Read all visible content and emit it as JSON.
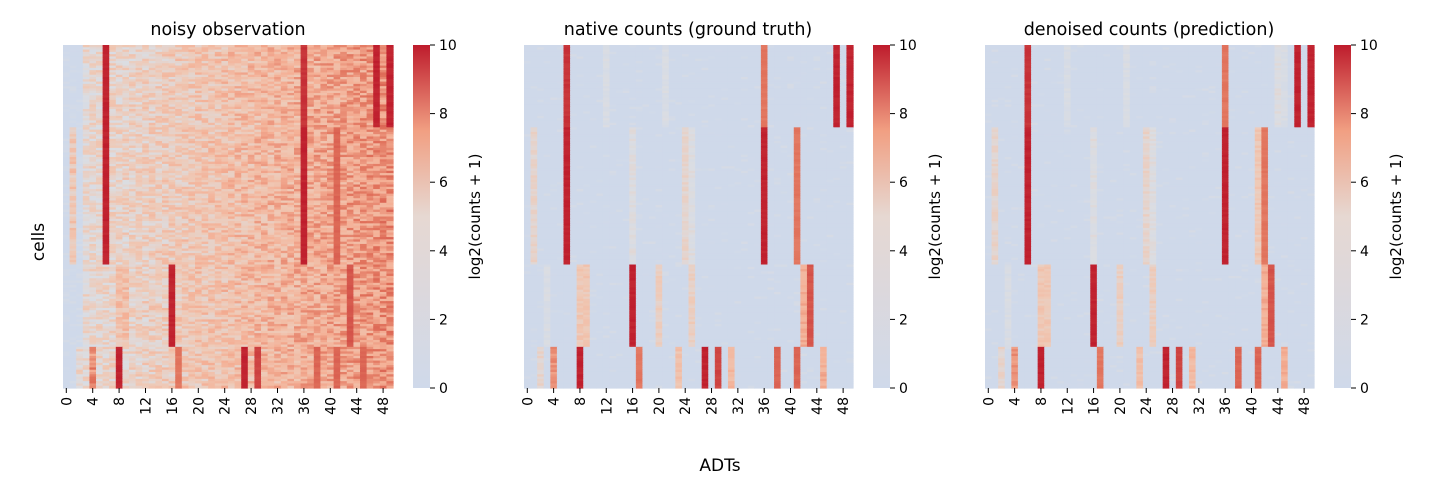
{
  "figure": {
    "ylabel": "cells",
    "xlabel": "ADTs"
  },
  "colormap": {
    "name": "coolwarm",
    "low": "#cfd9ea",
    "mid": "#e6d8d2",
    "high": "#be1c2c"
  },
  "chart_data": [
    {
      "type": "heatmap",
      "title": "noisy observation",
      "xlabel": "",
      "ylabel": "cells",
      "x_tick_labels": [
        "0",
        "4",
        "8",
        "12",
        "16",
        "20",
        "24",
        "28",
        "32",
        "36",
        "40",
        "44",
        "48"
      ],
      "n_columns": 50,
      "colorbar": {
        "label": "log2(counts + 1)",
        "range": [
          0,
          10
        ],
        "ticks": [
          "0",
          "2",
          "4",
          "6",
          "8",
          "10"
        ]
      },
      "background_level": 4.5,
      "column_noise": 1.2,
      "cell_groups": [
        {
          "fraction": 0.24,
          "high_columns": {
            "6": 10,
            "36": 9.5,
            "47": 10,
            "49": 10
          },
          "medium_columns": {}
        },
        {
          "fraction": 0.4,
          "high_columns": {
            "6": 10,
            "36": 10,
            "41": 8
          },
          "medium_columns": {
            "1": 4,
            "24": 4.5
          }
        },
        {
          "fraction": 0.24,
          "high_columns": {
            "16": 10,
            "43": 8.5
          },
          "medium_columns": {
            "8": 4.5,
            "9": 4.5,
            "20": 4.5,
            "25": 4.5
          }
        },
        {
          "fraction": 0.12,
          "high_columns": {
            "8": 10,
            "27": 10,
            "29": 9,
            "17": 7.5,
            "38": 8,
            "41": 8,
            "45": 8
          },
          "medium_columns": {
            "4": 6.5,
            "2": 3,
            "31": 5,
            "35": 5,
            "23": 4
          }
        }
      ]
    },
    {
      "type": "heatmap",
      "title": "native counts (ground truth)",
      "xlabel": "",
      "ylabel": "",
      "x_tick_labels": [
        "0",
        "4",
        "8",
        "12",
        "16",
        "20",
        "24",
        "28",
        "32",
        "36",
        "40",
        "44",
        "48"
      ],
      "n_columns": 50,
      "colorbar": {
        "label": "log2(counts + 1)",
        "range": [
          0,
          10
        ],
        "ticks": [
          "0",
          "2",
          "4",
          "6",
          "8",
          "10"
        ]
      },
      "background_level": 0,
      "column_noise": 0.6,
      "cell_groups": [
        {
          "fraction": 0.24,
          "high_columns": {
            "6": 9.5,
            "36": 7.5,
            "47": 10,
            "49": 10
          },
          "medium_columns": {
            "12": 1.5,
            "21": 1.5
          }
        },
        {
          "fraction": 0.4,
          "high_columns": {
            "6": 10,
            "36": 10,
            "41": 7.5
          },
          "medium_columns": {
            "1": 3,
            "16": 2,
            "24": 3,
            "25": 2
          }
        },
        {
          "fraction": 0.24,
          "high_columns": {
            "16": 10,
            "43": 8.5
          },
          "medium_columns": {
            "3": 1.5,
            "8": 4,
            "9": 4,
            "20": 3.5,
            "25": 3.5,
            "42": 5.5
          }
        },
        {
          "fraction": 0.12,
          "high_columns": {
            "8": 10,
            "27": 10,
            "29": 9,
            "17": 7.5,
            "38": 8,
            "41": 8
          },
          "medium_columns": {
            "4": 6.5,
            "2": 3,
            "31": 5,
            "45": 5.5,
            "23": 4.5
          }
        }
      ]
    },
    {
      "type": "heatmap",
      "title": "denoised counts (prediction)",
      "xlabel": "",
      "ylabel": "",
      "x_tick_labels": [
        "0",
        "4",
        "8",
        "12",
        "16",
        "20",
        "24",
        "28",
        "32",
        "36",
        "40",
        "44",
        "48"
      ],
      "n_columns": 50,
      "colorbar": {
        "label": "log2(counts + 1)",
        "range": [
          0,
          10
        ],
        "ticks": [
          "0",
          "2",
          "4",
          "6",
          "8",
          "10"
        ]
      },
      "background_level": 0,
      "column_noise": 0.6,
      "cell_groups": [
        {
          "fraction": 0.24,
          "high_columns": {
            "6": 9.5,
            "36": 7.5,
            "47": 10,
            "49": 10
          },
          "medium_columns": {
            "12": 1.5,
            "21": 1.5,
            "44": 2,
            "45": 1.5
          }
        },
        {
          "fraction": 0.4,
          "high_columns": {
            "6": 10,
            "36": 10,
            "42": 7.5
          },
          "medium_columns": {
            "1": 3,
            "16": 2,
            "24": 3,
            "25": 2,
            "41": 4
          }
        },
        {
          "fraction": 0.24,
          "high_columns": {
            "16": 10,
            "43": 8.5
          },
          "medium_columns": {
            "3": 1.5,
            "8": 4,
            "9": 4,
            "20": 3.5,
            "25": 3.5,
            "42": 5.5
          }
        },
        {
          "fraction": 0.12,
          "high_columns": {
            "8": 10,
            "27": 10,
            "29": 9,
            "17": 7.5,
            "38": 8,
            "41": 8
          },
          "medium_columns": {
            "4": 6.5,
            "2": 3,
            "31": 5,
            "45": 5.5,
            "23": 4.5
          }
        }
      ]
    }
  ]
}
